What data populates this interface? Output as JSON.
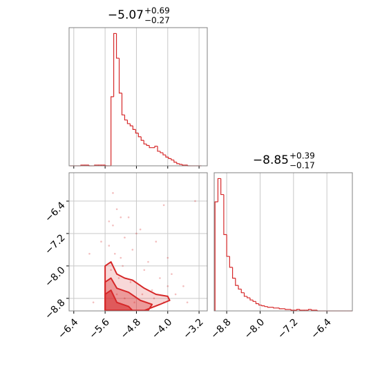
{
  "chart_data": [
    {
      "type": "histogram",
      "title": "−5.07",
      "title_upper": "+0.69",
      "title_lower": "−0.27",
      "color": "#d62728",
      "grid": true,
      "xlim": [
        -6.52,
        -2.99
      ],
      "ylim": [
        0,
        190
      ],
      "xticks": [
        {
          "value": -6.4,
          "label": "−6.4"
        },
        {
          "value": -5.6,
          "label": "−5.6"
        },
        {
          "value": -4.8,
          "label": "−4.8"
        },
        {
          "value": -4.0,
          "label": "−4.0"
        },
        {
          "value": -3.2,
          "label": "−3.2"
        }
      ],
      "bins": [
        -6.5,
        -6.43,
        -6.36,
        -6.29,
        -6.22,
        -6.15,
        -6.08,
        -6.01,
        -5.94,
        -5.87,
        -5.8,
        -5.73,
        -5.66,
        -5.59,
        -5.52,
        -5.45,
        -5.38,
        -5.31,
        -5.24,
        -5.17,
        -5.1,
        -5.03,
        -4.96,
        -4.89,
        -4.82,
        -4.75,
        -4.68,
        -4.61,
        -4.54,
        -4.47,
        -4.4,
        -4.33,
        -4.26,
        -4.19,
        -4.12,
        -4.05,
        -3.98,
        -3.91,
        -3.84,
        -3.77,
        -3.7,
        -3.63,
        -3.56,
        -3.49,
        -3.42,
        -3.35,
        -3.28,
        -3.21,
        -3.14
      ],
      "values": [
        0,
        0,
        0,
        0,
        1,
        1,
        1,
        0,
        0,
        1,
        1,
        1,
        1,
        0,
        0,
        95,
        182,
        148,
        100,
        70,
        63,
        58,
        55,
        50,
        45,
        40,
        35,
        30,
        28,
        25,
        25,
        27,
        20,
        18,
        15,
        12,
        10,
        8,
        5,
        3,
        2,
        1,
        1,
        0,
        0,
        0,
        0,
        0
      ]
    },
    {
      "type": "scatter",
      "color": "#d62728",
      "grid": true,
      "xlim": [
        -6.52,
        -2.99
      ],
      "ylim": [
        -9.11,
        -5.7
      ],
      "xticks": [
        {
          "value": -6.4,
          "label": "−6.4"
        },
        {
          "value": -5.6,
          "label": "−5.6"
        },
        {
          "value": -4.8,
          "label": "−4.8"
        },
        {
          "value": -4.0,
          "label": "−4.0"
        },
        {
          "value": -3.2,
          "label": "−3.2"
        }
      ],
      "yticks": [
        {
          "value": -6.4,
          "label": "−6.4"
        },
        {
          "value": -7.2,
          "label": "−7.2"
        },
        {
          "value": -8.0,
          "label": "−8.0"
        },
        {
          "value": -8.8,
          "label": "−8.8"
        }
      ],
      "x": [
        -5.5,
        -5.4,
        -5.3,
        -5.2,
        -5.1,
        -5.0,
        -4.9,
        -4.7,
        -4.5,
        -4.3,
        -4.1,
        -3.9,
        -3.6,
        -3.3,
        -5.6,
        -5.45,
        -5.35,
        -5.25,
        -5.15,
        -4.95,
        -4.8,
        -4.6,
        -4.4,
        -4.2,
        -4.0,
        -5.9,
        -6.0,
        -5.7,
        -5.5,
        -5.3,
        -5.1,
        -4.85,
        -4.65,
        -4.35,
        -3.8,
        -3.5,
        -4.1,
        -5.4,
        -5.2,
        -4.0
      ],
      "y": [
        -7.5,
        -7.0,
        -6.6,
        -7.8,
        -7.3,
        -6.8,
        -7.6,
        -7.1,
        -7.9,
        -7.4,
        -6.5,
        -8.2,
        -8.5,
        -6.4,
        -8.6,
        -8.1,
        -7.7,
        -8.3,
        -8.0,
        -8.4,
        -7.2,
        -8.1,
        -8.6,
        -8.3,
        -8.5,
        -8.9,
        -7.7,
        -7.4,
        -6.9,
        -8.7,
        -8.8,
        -8.9,
        -8.7,
        -8.8,
        -8.7,
        -8.9,
        -8.9,
        -6.2,
        -6.8,
        -7.8
      ],
      "contours": [
        {
          "x": [
            -5.6,
            -5.6,
            -5.45,
            -5.3,
            -5.1,
            -4.9,
            -4.6,
            -4.3,
            -4.0,
            -3.95,
            -4.2,
            -4.6
          ],
          "y": [
            -9.1,
            -8.0,
            -7.9,
            -8.2,
            -8.3,
            -8.35,
            -8.55,
            -8.7,
            -8.75,
            -8.85,
            -8.95,
            -9.1
          ]
        },
        {
          "x": [
            -5.6,
            -5.6,
            -5.45,
            -5.3,
            -5.0,
            -4.7,
            -4.4,
            -4.5
          ],
          "y": [
            -9.1,
            -8.4,
            -8.3,
            -8.55,
            -8.65,
            -8.85,
            -8.95,
            -9.1
          ]
        },
        {
          "x": [
            -5.6,
            -5.6,
            -5.45,
            -5.3,
            -5.0,
            -4.9
          ],
          "y": [
            -9.1,
            -8.7,
            -8.6,
            -8.9,
            -9.0,
            -9.1
          ]
        }
      ]
    },
    {
      "type": "histogram",
      "title": "−8.85",
      "title_upper": "+0.39",
      "title_lower": "−0.17",
      "color": "#d62728",
      "grid": true,
      "xlim": [
        -9.1,
        -5.79
      ],
      "ylim": [
        0,
        190
      ],
      "xticks": [
        {
          "value": -8.8,
          "label": "−8.8"
        },
        {
          "value": -8.0,
          "label": "−8.0"
        },
        {
          "value": -7.2,
          "label": "−7.2"
        },
        {
          "value": -6.4,
          "label": "−6.4"
        }
      ],
      "bins": [
        -9.08,
        -9.01,
        -8.94,
        -8.87,
        -8.8,
        -8.73,
        -8.66,
        -8.59,
        -8.52,
        -8.45,
        -8.38,
        -8.31,
        -8.24,
        -8.17,
        -8.1,
        -8.03,
        -7.96,
        -7.89,
        -7.82,
        -7.75,
        -7.68,
        -7.61,
        -7.54,
        -7.47,
        -7.4,
        -7.33,
        -7.26,
        -7.19,
        -7.12,
        -7.05,
        -6.98,
        -6.91,
        -6.84,
        -6.77,
        -6.7,
        -6.63,
        -6.56,
        -6.49,
        -6.42,
        -6.35,
        -6.28,
        -6.21,
        -6.14,
        -6.07,
        -6.0,
        -5.93,
        -5.86,
        -5.79
      ],
      "values": [
        150,
        182,
        160,
        105,
        75,
        60,
        45,
        35,
        30,
        25,
        20,
        18,
        15,
        13,
        10,
        8,
        7,
        6,
        5,
        5,
        4,
        4,
        3,
        3,
        2,
        2,
        1,
        1,
        2,
        1,
        1,
        1,
        2,
        1,
        1,
        0,
        0,
        0,
        0,
        0,
        0,
        0,
        0,
        0,
        0,
        0,
        0
      ]
    }
  ]
}
